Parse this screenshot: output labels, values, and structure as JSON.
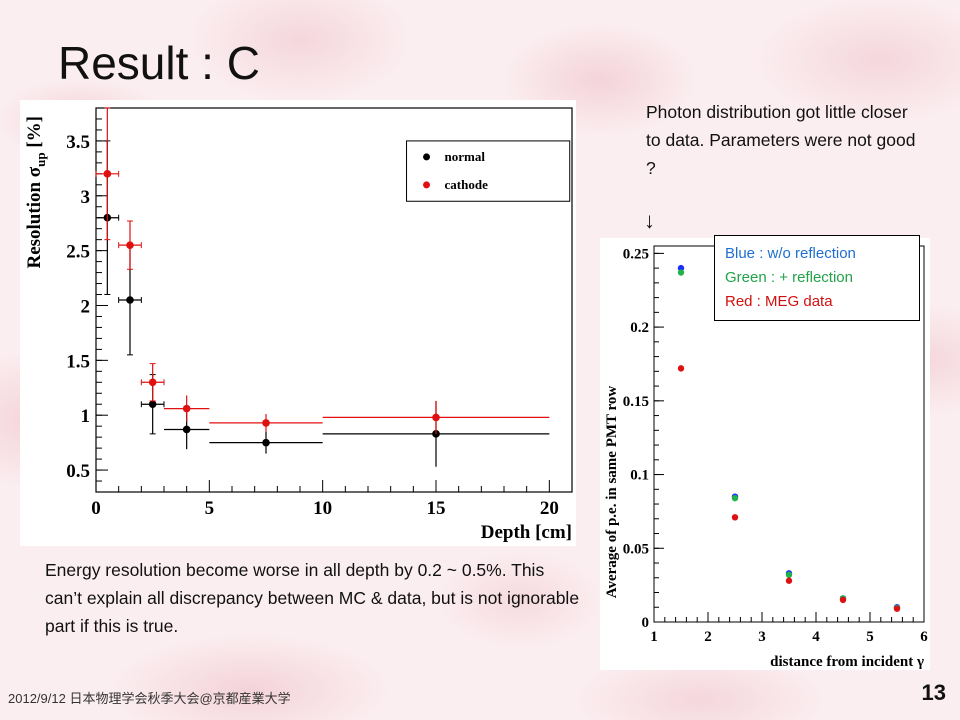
{
  "slide": {
    "title": "Result : C",
    "right_note": "Photon distribution got little closer to data. Parameters were not good ?",
    "arrow": "↓",
    "bottom_note": "Energy resolution become worse in all depth by 0.2 ~ 0.5%. This can’t explain all discrepancy between MC & data, but is not ignorable part if this is true.",
    "footer": "2012/9/12 日本物理学会秋季大会@京都産業大学",
    "page_number": "13",
    "legend_box": {
      "blue": "Blue : w/o reflection",
      "green": "Green : + reflection",
      "red": "Red : MEG data"
    }
  },
  "colors": {
    "normal": "#000000",
    "cathode": "#e01010",
    "blue": "#1a2cff",
    "green": "#22b24c",
    "red": "#dd1111",
    "blue_text": "#1f6fd0",
    "green_text": "#22a34a",
    "red_text": "#d01010"
  },
  "chart_data": [
    {
      "type": "scatter",
      "xlabel": "Depth [cm]",
      "ylabel": "Resolution σup [%]",
      "ylabel_main": "Resolution σ",
      "ylabel_sub": "up",
      "ylabel_unit": "[%]",
      "xlim": [
        0,
        21
      ],
      "ylim": [
        0.3,
        3.8
      ],
      "xticks": [
        "0",
        "5",
        "10",
        "15",
        "20"
      ],
      "yticks": [
        "0.5",
        "1",
        "1.5",
        "2",
        "2.5",
        "3",
        "3.5"
      ],
      "legend_position": "top-right",
      "series": [
        {
          "name": "normal",
          "points": [
            {
              "x": 0.5,
              "y": 2.8,
              "xerr": 0.5,
              "yerr": 0.7
            },
            {
              "x": 1.5,
              "y": 2.05,
              "xerr": 0.5,
              "yerr": 0.5
            },
            {
              "x": 2.5,
              "y": 1.1,
              "xerr": 0.5,
              "yerr": 0.27
            },
            {
              "x": 4.0,
              "y": 0.87,
              "xerr": 1.0,
              "yerr": 0.18
            },
            {
              "x": 7.5,
              "y": 0.75,
              "xerr": 2.5,
              "yerr": 0.1
            },
            {
              "x": 15.0,
              "y": 0.83,
              "xerr": 5.0,
              "yerr": 0.3
            }
          ]
        },
        {
          "name": "cathode",
          "points": [
            {
              "x": 0.5,
              "y": 3.2,
              "xerr": 0.5,
              "yerr": 0.6
            },
            {
              "x": 1.5,
              "y": 2.55,
              "xerr": 0.5,
              "yerr": 0.22
            },
            {
              "x": 2.5,
              "y": 1.3,
              "xerr": 0.5,
              "yerr": 0.17
            },
            {
              "x": 4.0,
              "y": 1.06,
              "xerr": 1.0,
              "yerr": 0.12
            },
            {
              "x": 7.5,
              "y": 0.93,
              "xerr": 2.5,
              "yerr": 0.08
            },
            {
              "x": 15.0,
              "y": 0.98,
              "xerr": 5.0,
              "yerr": 0.15
            }
          ]
        }
      ]
    },
    {
      "type": "scatter",
      "xlabel": "distance from incident γ",
      "ylabel": "Average of p.e. in same PMT row",
      "xlim": [
        1,
        6
      ],
      "ylim": [
        0,
        0.255
      ],
      "xticks": [
        "1",
        "2",
        "3",
        "4",
        "5",
        "6"
      ],
      "yticks": [
        "0",
        "0.05",
        "0.1",
        "0.15",
        "0.2",
        "0.25"
      ],
      "series": [
        {
          "color": "blue",
          "x": [
            1.5,
            2.5,
            3.5,
            4.5,
            5.5
          ],
          "y": [
            0.24,
            0.085,
            0.033,
            0.016,
            0.01
          ]
        },
        {
          "color": "green",
          "x": [
            1.5,
            2.5,
            3.5,
            4.5,
            5.5
          ],
          "y": [
            0.237,
            0.084,
            0.032,
            0.016,
            0.0095
          ]
        },
        {
          "color": "red",
          "x": [
            1.5,
            2.5,
            3.5,
            4.5,
            5.5
          ],
          "y": [
            0.172,
            0.071,
            0.028,
            0.015,
            0.009
          ]
        }
      ]
    }
  ]
}
